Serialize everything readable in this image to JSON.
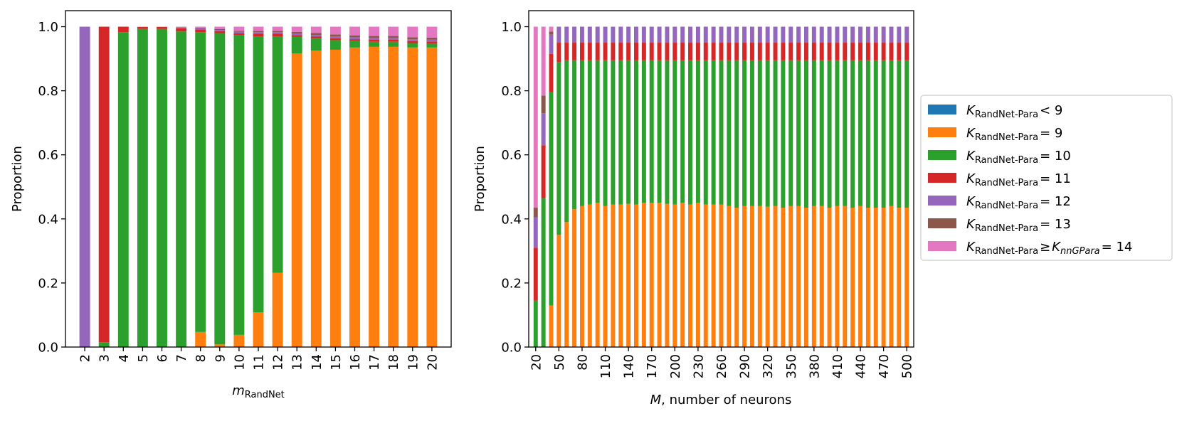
{
  "chart_data": [
    {
      "type": "bar",
      "stacked": true,
      "title": "",
      "xlabel": "m",
      "xlabel_sub": "RandNet",
      "ylabel": "Proportion",
      "ylim": [
        0,
        1.05
      ],
      "yticks": [
        "0.0",
        "0.2",
        "0.4",
        "0.6",
        "0.8",
        "1.0"
      ],
      "categories": [
        "2",
        "3",
        "4",
        "5",
        "6",
        "7",
        "8",
        "9",
        "10",
        "11",
        "12",
        "13",
        "14",
        "15",
        "16",
        "17",
        "18",
        "19",
        "20"
      ],
      "series": [
        {
          "name": "K<9",
          "color": "#1f77b4",
          "values": [
            0,
            0,
            0,
            0,
            0,
            0,
            0,
            0,
            0,
            0,
            0,
            0,
            0,
            0,
            0,
            0,
            0,
            0,
            0
          ]
        },
        {
          "name": "K=9",
          "color": "#ff7f0e",
          "values": [
            0,
            0,
            0,
            0,
            0,
            0,
            0.047,
            0.008,
            0.038,
            0.108,
            0.232,
            0.916,
            0.925,
            0.928,
            0.935,
            0.937,
            0.937,
            0.935,
            0.935
          ]
        },
        {
          "name": "K=10",
          "color": "#2ca02c",
          "values": [
            0,
            0.015,
            0.983,
            0.993,
            0.993,
            0.985,
            0.936,
            0.972,
            0.935,
            0.862,
            0.738,
            0.052,
            0.038,
            0.03,
            0.02,
            0.016,
            0.016,
            0.014,
            0.013
          ]
        },
        {
          "name": "K=11",
          "color": "#d62728",
          "values": [
            0,
            0.985,
            0.017,
            0.006,
            0.006,
            0.01,
            0.008,
            0.006,
            0.006,
            0.008,
            0.008,
            0.006,
            0.006,
            0.006,
            0.006,
            0.006,
            0.006,
            0.006,
            0.006
          ]
        },
        {
          "name": "K=12",
          "color": "#9467bd",
          "values": [
            1.0,
            0,
            0,
            0,
            0,
            0.002,
            0.004,
            0.004,
            0.005,
            0.005,
            0.005,
            0.005,
            0.005,
            0.006,
            0.006,
            0.006,
            0.006,
            0.006,
            0.006
          ]
        },
        {
          "name": "K=13",
          "color": "#8c564b",
          "values": [
            0,
            0,
            0,
            0,
            0,
            0.001,
            0.002,
            0.003,
            0.003,
            0.004,
            0.004,
            0.005,
            0.006,
            0.006,
            0.006,
            0.006,
            0.006,
            0.006,
            0.006
          ]
        },
        {
          "name": "K>=14",
          "color": "#e377c2",
          "values": [
            0,
            0,
            0,
            0.001,
            0.001,
            0.002,
            0.003,
            0.007,
            0.013,
            0.013,
            0.013,
            0.016,
            0.02,
            0.024,
            0.027,
            0.029,
            0.029,
            0.033,
            0.034
          ]
        }
      ]
    },
    {
      "type": "bar",
      "stacked": true,
      "title": "",
      "xlabel": "M, number of neurons",
      "ylabel": "Proportion",
      "ylim": [
        0,
        1.05
      ],
      "yticks": [
        "0.0",
        "0.2",
        "0.4",
        "0.6",
        "0.8",
        "1.0"
      ],
      "x": [
        20,
        30,
        40,
        50,
        60,
        70,
        80,
        90,
        100,
        110,
        120,
        130,
        140,
        150,
        160,
        170,
        180,
        190,
        200,
        210,
        220,
        230,
        240,
        250,
        260,
        270,
        280,
        290,
        300,
        310,
        320,
        330,
        340,
        350,
        360,
        370,
        380,
        390,
        400,
        410,
        420,
        430,
        440,
        450,
        460,
        470,
        480,
        490,
        500
      ],
      "xtick_labels": [
        "20",
        "50",
        "80",
        "110",
        "140",
        "170",
        "200",
        "230",
        "260",
        "290",
        "320",
        "350",
        "380",
        "410",
        "440",
        "470",
        "500"
      ],
      "series": [
        {
          "name": "K<9",
          "color": "#1f77b4",
          "values": [
            0,
            0,
            0,
            0,
            0,
            0,
            0,
            0,
            0,
            0,
            0,
            0,
            0,
            0,
            0,
            0,
            0,
            0,
            0,
            0,
            0,
            0,
            0,
            0,
            0,
            0,
            0,
            0,
            0,
            0,
            0,
            0,
            0,
            0,
            0,
            0,
            0,
            0,
            0,
            0,
            0,
            0,
            0,
            0,
            0,
            0,
            0,
            0,
            0
          ]
        },
        {
          "name": "K=9",
          "color": "#ff7f0e",
          "values": [
            0,
            0,
            0.13,
            0.35,
            0.39,
            0.43,
            0.44,
            0.445,
            0.45,
            0.44,
            0.445,
            0.445,
            0.447,
            0.445,
            0.45,
            0.45,
            0.45,
            0.447,
            0.445,
            0.45,
            0.445,
            0.45,
            0.445,
            0.445,
            0.445,
            0.44,
            0.435,
            0.44,
            0.44,
            0.44,
            0.438,
            0.44,
            0.435,
            0.44,
            0.44,
            0.435,
            0.44,
            0.44,
            0.435,
            0.44,
            0.44,
            0.435,
            0.44,
            0.435,
            0.435,
            0.435,
            0.44,
            0.435,
            0.435
          ]
        },
        {
          "name": "K=10",
          "color": "#2ca02c",
          "values": [
            0.145,
            0.465,
            0.665,
            0.54,
            0.505,
            0.465,
            0.455,
            0.45,
            0.445,
            0.455,
            0.45,
            0.45,
            0.448,
            0.45,
            0.445,
            0.445,
            0.445,
            0.448,
            0.45,
            0.445,
            0.45,
            0.445,
            0.45,
            0.45,
            0.45,
            0.455,
            0.46,
            0.455,
            0.455,
            0.455,
            0.457,
            0.455,
            0.46,
            0.455,
            0.455,
            0.46,
            0.455,
            0.455,
            0.46,
            0.455,
            0.455,
            0.46,
            0.455,
            0.46,
            0.46,
            0.46,
            0.455,
            0.46,
            0.46
          ]
        },
        {
          "name": "K=11",
          "color": "#d62728",
          "values": [
            0.165,
            0.165,
            0.12,
            0.06,
            0.055,
            0.055,
            0.055,
            0.055,
            0.055,
            0.055,
            0.055,
            0.055,
            0.055,
            0.055,
            0.055,
            0.055,
            0.055,
            0.055,
            0.055,
            0.055,
            0.055,
            0.055,
            0.055,
            0.055,
            0.055,
            0.055,
            0.055,
            0.055,
            0.055,
            0.055,
            0.055,
            0.055,
            0.055,
            0.055,
            0.055,
            0.055,
            0.055,
            0.055,
            0.055,
            0.055,
            0.055,
            0.055,
            0.055,
            0.055,
            0.055,
            0.055,
            0.055,
            0.055,
            0.055
          ]
        },
        {
          "name": "K=12",
          "color": "#9467bd",
          "values": [
            0.095,
            0.1,
            0.06,
            0.05,
            0.05,
            0.05,
            0.05,
            0.05,
            0.05,
            0.05,
            0.05,
            0.05,
            0.05,
            0.05,
            0.05,
            0.05,
            0.05,
            0.05,
            0.05,
            0.05,
            0.05,
            0.05,
            0.05,
            0.05,
            0.05,
            0.05,
            0.05,
            0.05,
            0.05,
            0.05,
            0.05,
            0.05,
            0.05,
            0.05,
            0.05,
            0.05,
            0.05,
            0.05,
            0.05,
            0.05,
            0.05,
            0.05,
            0.05,
            0.05,
            0.05,
            0.05,
            0.05,
            0.05,
            0.05
          ]
        },
        {
          "name": "K=13",
          "color": "#8c564b",
          "values": [
            0.03,
            0.055,
            0.01,
            0,
            0,
            0,
            0,
            0,
            0,
            0,
            0,
            0,
            0,
            0,
            0,
            0,
            0,
            0,
            0,
            0,
            0,
            0,
            0,
            0,
            0,
            0,
            0,
            0,
            0,
            0,
            0,
            0,
            0,
            0,
            0,
            0,
            0,
            0,
            0,
            0,
            0,
            0,
            0,
            0,
            0,
            0,
            0,
            0,
            0
          ]
        },
        {
          "name": "K>=14",
          "color": "#e377c2",
          "values": [
            0.565,
            0.215,
            0.015,
            0,
            0,
            0,
            0,
            0,
            0,
            0,
            0,
            0,
            0,
            0,
            0,
            0,
            0,
            0,
            0,
            0,
            0,
            0,
            0,
            0,
            0,
            0,
            0,
            0,
            0,
            0,
            0,
            0,
            0,
            0,
            0,
            0,
            0,
            0,
            0,
            0,
            0,
            0,
            0,
            0,
            0,
            0,
            0,
            0,
            0
          ]
        }
      ]
    }
  ],
  "legend": {
    "placement": "right",
    "entries": [
      {
        "base": "K",
        "sub": "RandNet-Para",
        "rel": "< 9",
        "color": "#1f77b4"
      },
      {
        "base": "K",
        "sub": "RandNet-Para",
        "rel": "= 9",
        "color": "#ff7f0e"
      },
      {
        "base": "K",
        "sub": "RandNet-Para",
        "rel": "= 10",
        "color": "#2ca02c"
      },
      {
        "base": "K",
        "sub": "RandNet-Para",
        "rel": "= 11",
        "color": "#d62728"
      },
      {
        "base": "K",
        "sub": "RandNet-Para",
        "rel": "= 12",
        "color": "#9467bd"
      },
      {
        "base": "K",
        "sub": "RandNet-Para",
        "rel": "= 13",
        "color": "#8c564b"
      },
      {
        "base": "K",
        "sub": "RandNet-Para",
        "rel": "≥",
        "base2": "K",
        "sub2": "nnGPara",
        "rel2": "= 14",
        "color": "#e377c2"
      }
    ]
  }
}
